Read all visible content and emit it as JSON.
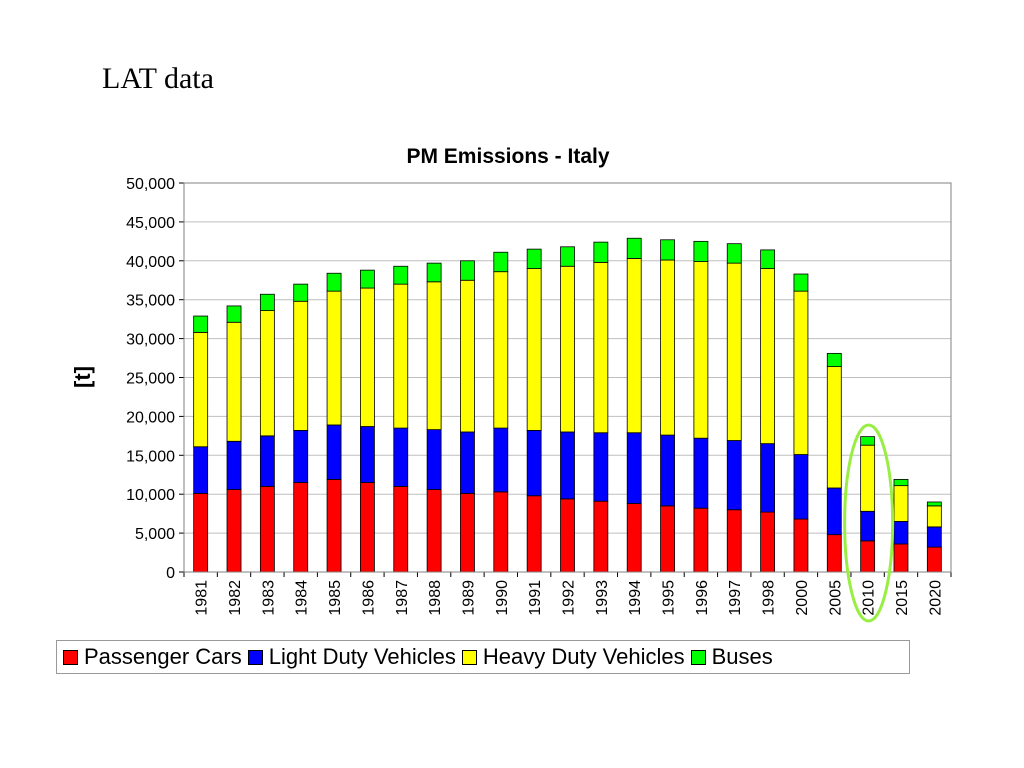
{
  "slide": {
    "title": "LAT data"
  },
  "chart_data": {
    "type": "bar",
    "stacked": true,
    "title": "PM Emissions - Italy",
    "xlabel": "",
    "ylabel": "[t]",
    "ylim": [
      0,
      50000
    ],
    "yticks": [
      0,
      5000,
      10000,
      15000,
      20000,
      25000,
      30000,
      35000,
      40000,
      45000,
      50000
    ],
    "ytick_labels": [
      "0",
      "5,000",
      "10,000",
      "15,000",
      "20,000",
      "25,000",
      "30,000",
      "35,000",
      "40,000",
      "45,000",
      "50,000"
    ],
    "grid": true,
    "legend_position": "bottom",
    "categories": [
      "1981",
      "1982",
      "1983",
      "1984",
      "1985",
      "1986",
      "1987",
      "1988",
      "1989",
      "1990",
      "1991",
      "1992",
      "1993",
      "1994",
      "1995",
      "1996",
      "1997",
      "1998",
      "2000",
      "2005",
      "2010",
      "2015",
      "2020"
    ],
    "series": [
      {
        "name": "Passenger Cars",
        "color": "#ff0000",
        "values": [
          10100,
          10600,
          11000,
          11500,
          11900,
          11500,
          11000,
          10600,
          10100,
          10300,
          9800,
          9400,
          9100,
          8800,
          8500,
          8200,
          8000,
          7700,
          6800,
          4800,
          4000,
          3600,
          3200
        ]
      },
      {
        "name": "Light Duty Vehicles",
        "color": "#0000ff",
        "values": [
          6000,
          6200,
          6500,
          6700,
          7000,
          7200,
          7500,
          7700,
          7900,
          8200,
          8400,
          8600,
          8800,
          9100,
          9100,
          9000,
          8900,
          8800,
          8300,
          6000,
          3800,
          2900,
          2600
        ]
      },
      {
        "name": "Heavy Duty Vehicles",
        "color": "#ffff00",
        "values": [
          14700,
          15300,
          16100,
          16600,
          17200,
          17800,
          18500,
          19000,
          19500,
          20100,
          20800,
          21300,
          21900,
          22400,
          22500,
          22700,
          22800,
          22500,
          21000,
          15600,
          8500,
          4600,
          2700
        ]
      },
      {
        "name": "Buses",
        "color": "#00ff00",
        "values": [
          2100,
          2100,
          2100,
          2200,
          2300,
          2300,
          2300,
          2400,
          2500,
          2500,
          2500,
          2500,
          2600,
          2600,
          2600,
          2600,
          2500,
          2400,
          2200,
          1700,
          1100,
          800,
          500
        ]
      }
    ],
    "highlight": {
      "category": "2010",
      "shape": "ellipse",
      "color": "#99ee44"
    }
  }
}
